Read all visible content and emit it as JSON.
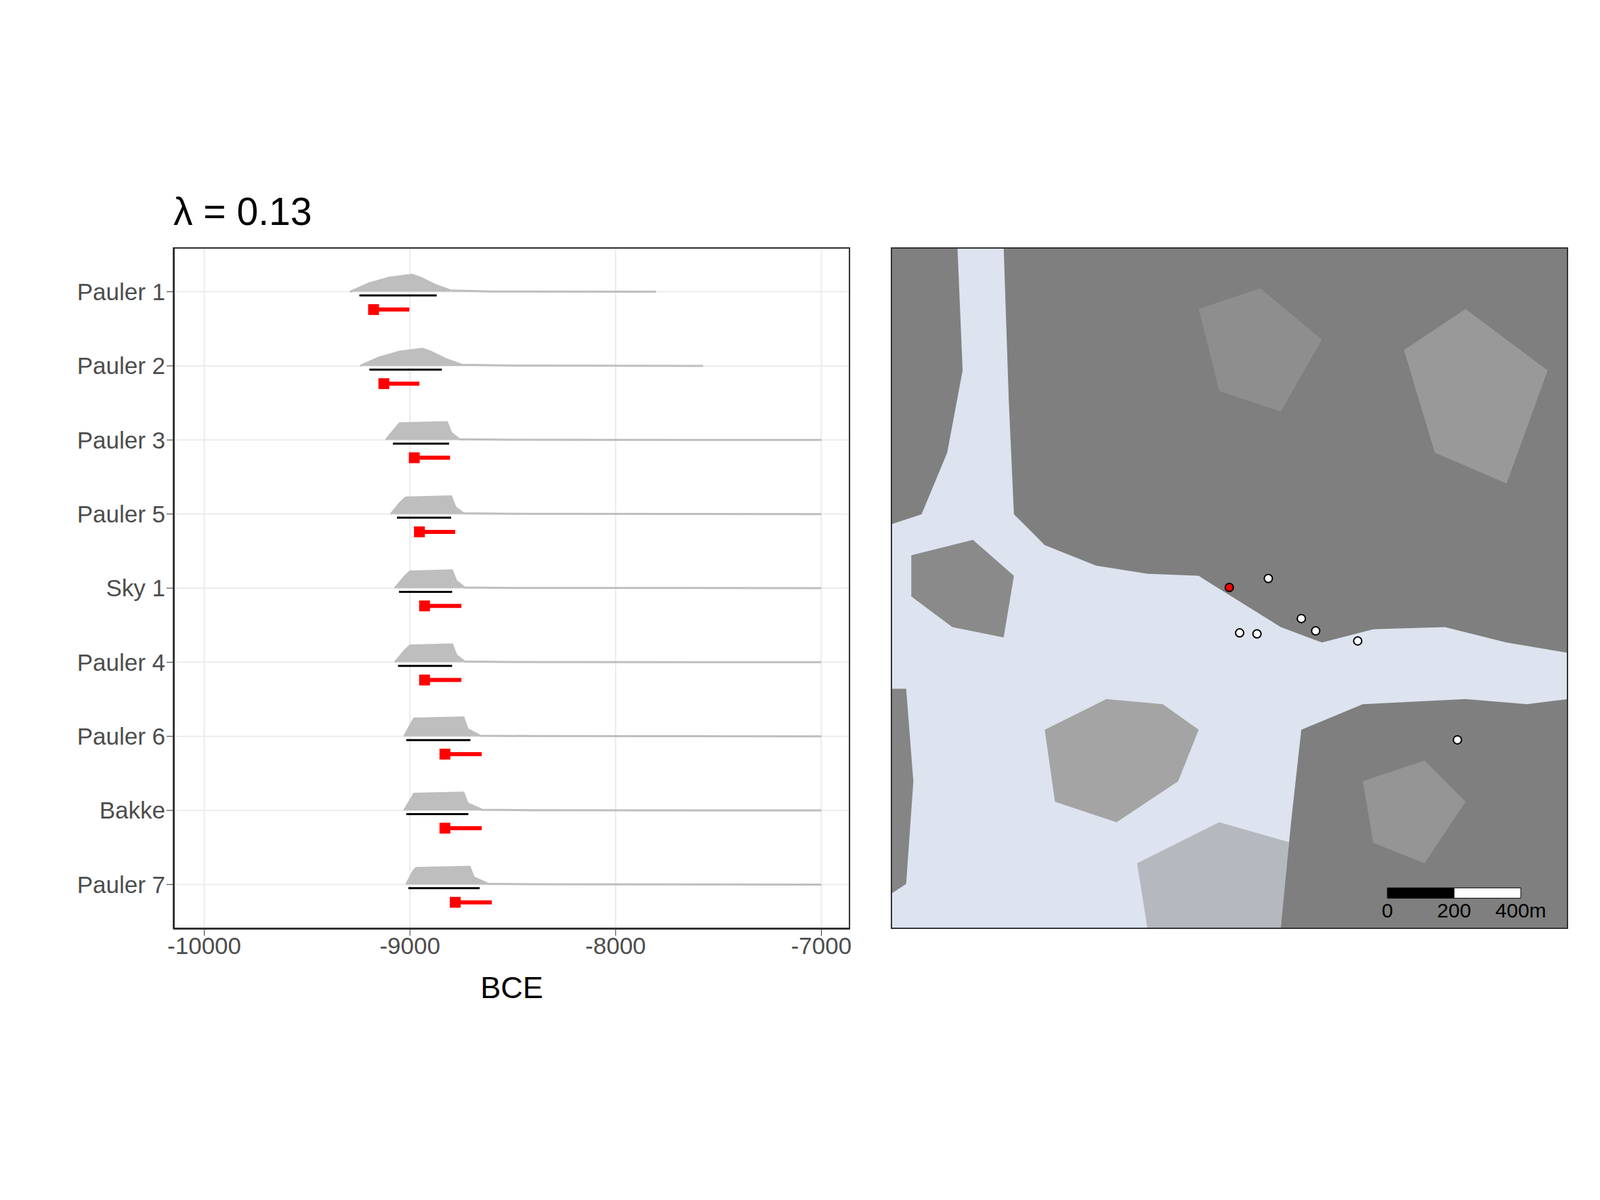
{
  "chart_data": [
    {
      "type": "interval",
      "title": "λ = 0.13",
      "x_label": "BCE",
      "categories": [
        "Pauler 1",
        "Pauler 2",
        "Pauler 3",
        "Pauler 5",
        "Sky 1",
        "Pauler 4",
        "Pauler 6",
        "Bakke",
        "Pauler 7"
      ],
      "xlim": [
        -10150,
        -6860
      ],
      "xticks": [
        -10000,
        -9000,
        -8000,
        -7000
      ],
      "grid": true,
      "density_color": "#bebebe",
      "hpd_color": "#000000",
      "interval_color": "#ff0000",
      "marker": "square",
      "density": [
        [
          [
            -9291,
            0
          ],
          [
            -9200,
            0.35
          ],
          [
            -9100,
            0.6
          ],
          [
            -8990,
            0.72
          ],
          [
            -8950,
            0.6
          ],
          [
            -8880,
            0.3
          ],
          [
            -8800,
            0.05
          ],
          [
            -8600,
            0.01
          ],
          [
            -7804,
            0
          ]
        ],
        [
          [
            -9241,
            0
          ],
          [
            -9150,
            0.35
          ],
          [
            -9050,
            0.6
          ],
          [
            -8940,
            0.72
          ],
          [
            -8900,
            0.6
          ],
          [
            -8830,
            0.3
          ],
          [
            -8750,
            0.05
          ],
          [
            -8500,
            0.01
          ],
          [
            -7575,
            0
          ]
        ],
        [
          [
            -9117,
            0
          ],
          [
            -9070,
            0.5
          ],
          [
            -9050,
            0.7
          ],
          [
            -8820,
            0.75
          ],
          [
            -8800,
            0.3
          ],
          [
            -8760,
            0.03
          ],
          [
            -8500,
            0.01
          ],
          [
            -7000,
            0
          ]
        ],
        [
          [
            -9093,
            0
          ],
          [
            -9045,
            0.5
          ],
          [
            -9020,
            0.7
          ],
          [
            -8800,
            0.75
          ],
          [
            -8780,
            0.3
          ],
          [
            -8740,
            0.03
          ],
          [
            -8500,
            0.01
          ],
          [
            -7000,
            0
          ]
        ],
        [
          [
            -9073,
            0
          ],
          [
            -9025,
            0.5
          ],
          [
            -9000,
            0.7
          ],
          [
            -8795,
            0.75
          ],
          [
            -8775,
            0.3
          ],
          [
            -8735,
            0.03
          ],
          [
            -8500,
            0.01
          ],
          [
            -7000,
            0
          ]
        ],
        [
          [
            -9073,
            0
          ],
          [
            -9025,
            0.5
          ],
          [
            -9000,
            0.7
          ],
          [
            -8795,
            0.75
          ],
          [
            -8775,
            0.3
          ],
          [
            -8735,
            0.03
          ],
          [
            -8500,
            0.01
          ],
          [
            -7000,
            0
          ]
        ],
        [
          [
            -9028,
            0
          ],
          [
            -8990,
            0.6
          ],
          [
            -8980,
            0.75
          ],
          [
            -8740,
            0.8
          ],
          [
            -8720,
            0.3
          ],
          [
            -8660,
            0.03
          ],
          [
            -8400,
            0.01
          ],
          [
            -7000,
            0
          ]
        ],
        [
          [
            -9028,
            0
          ],
          [
            -8990,
            0.55
          ],
          [
            -8980,
            0.7
          ],
          [
            -8740,
            0.75
          ],
          [
            -8720,
            0.3
          ],
          [
            -8650,
            0.03
          ],
          [
            -8400,
            0.01
          ],
          [
            -7000,
            0
          ]
        ],
        [
          [
            -9018,
            0
          ],
          [
            -8985,
            0.55
          ],
          [
            -8970,
            0.7
          ],
          [
            -8710,
            0.75
          ],
          [
            -8690,
            0.3
          ],
          [
            -8620,
            0.03
          ],
          [
            -8350,
            0.01
          ],
          [
            -7000,
            0
          ]
        ]
      ],
      "hpd": [
        [
          -9246,
          -8870
        ],
        [
          -9197,
          -8845
        ],
        [
          -9083,
          -8810
        ],
        [
          -9063,
          -8800
        ],
        [
          -9053,
          -8795
        ],
        [
          -9058,
          -8795
        ],
        [
          -9018,
          -8706
        ],
        [
          -9018,
          -8716
        ],
        [
          -9008,
          -8661
        ]
      ],
      "intervals": [
        [
          -9177,
          -9003
        ],
        [
          -9127,
          -8954
        ],
        [
          -8979,
          -8805
        ],
        [
          -8954,
          -8780
        ],
        [
          -8929,
          -8750
        ],
        [
          -8929,
          -8750
        ],
        [
          -8830,
          -8651
        ],
        [
          -8830,
          -8651
        ],
        [
          -8780,
          -8602
        ]
      ]
    },
    {
      "type": "map",
      "tick_labels": false,
      "xlim": [
        0,
        2031
      ],
      "ylim": [
        0,
        2040
      ],
      "points": [
        {
          "x": 1015,
          "y": 1022,
          "color": "#ff0000"
        },
        {
          "x": 1132,
          "y": 1049,
          "color": "#ffffff"
        },
        {
          "x": 1231,
          "y": 929,
          "color": "#ffffff"
        },
        {
          "x": 1274,
          "y": 892,
          "color": "#ffffff"
        },
        {
          "x": 1046,
          "y": 886,
          "color": "#ffffff"
        },
        {
          "x": 1098,
          "y": 883,
          "color": "#ffffff"
        },
        {
          "x": 1400,
          "y": 862,
          "color": "#ffffff"
        },
        {
          "x": 1699,
          "y": 566,
          "color": "#ffffff"
        }
      ],
      "scale_bar": {
        "ticks": [
          0,
          200,
          {
            "value": 400,
            "label": "400m"
          }
        ]
      }
    }
  ]
}
